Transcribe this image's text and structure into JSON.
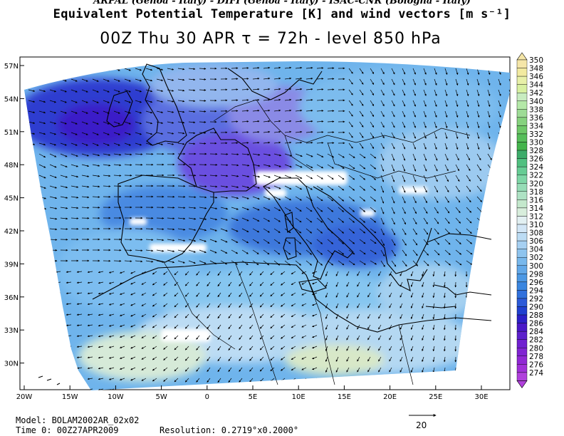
{
  "header": {
    "line1": "ARPAL (Genoa - Italy)  -  DIFI (Genoa - Italy)  -  ISAC-CNR (Bologna - Italy)",
    "line2": "Equivalent Potential Temperature [K] and wind vectors [m s⁻¹]",
    "line3": "00Z Thu 30 APR  τ = 72h  -  level 850 hPa"
  },
  "map": {
    "lat_labels": [
      "57N",
      "54N",
      "51N",
      "48N",
      "45N",
      "42N",
      "39N",
      "36N",
      "33N",
      "30N"
    ],
    "lon_labels": [
      "20W",
      "15W",
      "10W",
      "5W",
      "0",
      "5E",
      "10E",
      "15E",
      "20E",
      "25E",
      "30E"
    ],
    "coast_color": "#000000"
  },
  "colorbar": {
    "labels": [
      "350",
      "348",
      "346",
      "344",
      "342",
      "340",
      "338",
      "336",
      "334",
      "332",
      "330",
      "328",
      "326",
      "324",
      "322",
      "320",
      "318",
      "316",
      "314",
      "312",
      "310",
      "308",
      "306",
      "304",
      "302",
      "300",
      "298",
      "296",
      "294",
      "292",
      "290",
      "288",
      "286",
      "284",
      "282",
      "280",
      "278",
      "276",
      "274"
    ],
    "colors": [
      "#f5e6a8",
      "#f2eaa0",
      "#e8f0a8",
      "#d8f0a0",
      "#c8ecc0",
      "#b4e8a8",
      "#9edc96",
      "#86d27e",
      "#6ec868",
      "#56be5a",
      "#44b44c",
      "#3cac6a",
      "#50c080",
      "#66cc94",
      "#7ed6a6",
      "#96dcb6",
      "#aee2c4",
      "#c4e8cc",
      "#d8eedc",
      "#e2f0f2",
      "#d2e6f6",
      "#bcdcf4",
      "#a6d0f2",
      "#8ec4ee",
      "#78b8ec",
      "#62a8e8",
      "#4c98e4",
      "#3a86e0",
      "#3070dc",
      "#2c5ad8",
      "#2040d0",
      "#2c20c8",
      "#4a18c8",
      "#5c20cc",
      "#7020d0",
      "#8024d2",
      "#9028d4",
      "#a030d8",
      "#b040dc"
    ]
  },
  "footer": {
    "model": "Model: BOLAM2002AR_02x02",
    "time0": "Time 0: 00Z27APR2009",
    "resolution": "Resolution: 0.2719°x0.2000°",
    "ref_vector": "20"
  }
}
